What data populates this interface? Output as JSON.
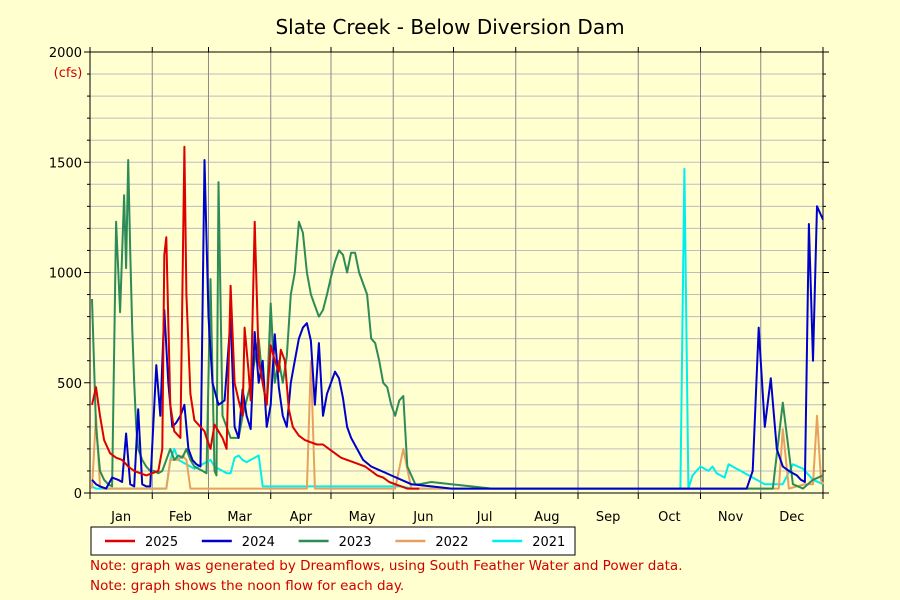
{
  "chart_data": {
    "type": "line",
    "title": "Slate Creek - Below Diversion Dam",
    "ylabel": "(cfs)",
    "xlabel": "",
    "ylim": [
      0,
      2000
    ],
    "yticks": [
      0,
      500,
      1000,
      1500,
      2000
    ],
    "x_tick_labels": [
      "Jan",
      "Feb",
      "Mar",
      "Apr",
      "May",
      "Jun",
      "Jul",
      "Aug",
      "Sep",
      "Oct",
      "Nov",
      "Dec"
    ],
    "x_unit": "day of year",
    "grid": true,
    "legend_position": "bottom",
    "series": [
      {
        "name": "2025",
        "color": "#dd0000",
        "x": [
          1,
          3,
          5,
          7,
          10,
          13,
          16,
          19,
          22,
          25,
          28,
          31,
          34,
          36,
          37,
          38,
          40,
          42,
          45,
          47,
          48,
          50,
          52,
          55,
          57,
          58,
          60,
          62,
          64,
          66,
          68,
          70,
          72,
          74,
          76,
          77,
          79,
          80,
          82,
          84,
          86,
          88,
          90,
          92,
          94,
          95,
          97,
          99,
          101,
          104,
          107,
          110,
          113,
          116,
          119,
          122,
          125,
          128,
          131,
          134,
          137,
          140,
          143,
          146,
          149,
          152,
          155,
          158,
          161,
          164
        ],
        "values": [
          400,
          480,
          350,
          240,
          180,
          160,
          150,
          120,
          100,
          90,
          80,
          90,
          100,
          200,
          1080,
          1160,
          400,
          280,
          250,
          1570,
          900,
          450,
          330,
          300,
          280,
          250,
          200,
          310,
          280,
          250,
          200,
          940,
          500,
          420,
          350,
          750,
          550,
          420,
          1230,
          600,
          500,
          400,
          670,
          600,
          550,
          650,
          600,
          380,
          300,
          260,
          240,
          230,
          220,
          220,
          200,
          180,
          160,
          150,
          140,
          130,
          120,
          100,
          80,
          70,
          50,
          40,
          30,
          20,
          20,
          20
        ]
      },
      {
        "name": "2024",
        "color": "#0000cc",
        "x": [
          1,
          3,
          5,
          8,
          11,
          14,
          16,
          18,
          20,
          22,
          24,
          26,
          28,
          30,
          33,
          35,
          37,
          39,
          41,
          43,
          45,
          47,
          49,
          51,
          53,
          55,
          57,
          59,
          61,
          64,
          67,
          70,
          72,
          74,
          76,
          78,
          80,
          82,
          84,
          86,
          88,
          90,
          92,
          94,
          96,
          98,
          100,
          102,
          104,
          106,
          108,
          110,
          112,
          114,
          116,
          118,
          120,
          122,
          124,
          126,
          128,
          130,
          133,
          136,
          140,
          145,
          150,
          155,
          160,
          170,
          180,
          200,
          230,
          260,
          290,
          300,
          306,
          310,
          312,
          316,
          320,
          324,
          327,
          330,
          333,
          336,
          339,
          342,
          345,
          348,
          350,
          352,
          354,
          356,
          358,
          360,
          362,
          365
        ],
        "values": [
          60,
          40,
          30,
          20,
          70,
          60,
          50,
          270,
          40,
          30,
          380,
          40,
          30,
          30,
          580,
          350,
          830,
          500,
          300,
          320,
          350,
          400,
          200,
          150,
          130,
          120,
          1510,
          800,
          500,
          400,
          420,
          790,
          300,
          250,
          470,
          350,
          290,
          730,
          500,
          600,
          300,
          400,
          720,
          480,
          350,
          300,
          500,
          600,
          700,
          750,
          770,
          690,
          400,
          680,
          350,
          450,
          500,
          550,
          520,
          430,
          300,
          250,
          200,
          150,
          120,
          100,
          80,
          60,
          40,
          30,
          20,
          20,
          20,
          20,
          20,
          20,
          20,
          20,
          20,
          20,
          20,
          20,
          20,
          100,
          750,
          300,
          520,
          200,
          120,
          100,
          90,
          80,
          60,
          50,
          1220,
          600,
          1300,
          1240
        ]
      },
      {
        "name": "2023",
        "color": "#2e8b57",
        "x": [
          1,
          3,
          5,
          7,
          9,
          11,
          13,
          15,
          17,
          18,
          19,
          20,
          21,
          22,
          23,
          24,
          26,
          28,
          30,
          32,
          34,
          36,
          38,
          40,
          42,
          44,
          46,
          48,
          50,
          52,
          54,
          56,
          58,
          60,
          62,
          63,
          64,
          66,
          68,
          70,
          72,
          74,
          76,
          78,
          80,
          82,
          84,
          86,
          88,
          90,
          92,
          94,
          96,
          98,
          100,
          102,
          104,
          106,
          108,
          110,
          112,
          114,
          116,
          118,
          120,
          122,
          124,
          126,
          128,
          130,
          132,
          134,
          136,
          138,
          140,
          142,
          144,
          146,
          148,
          150,
          152,
          154,
          156,
          158,
          160,
          162,
          164,
          170,
          180,
          190,
          200,
          210,
          230,
          260,
          290,
          310,
          320,
          326,
          328,
          330,
          333,
          336,
          340,
          345,
          350,
          355,
          360,
          365
        ],
        "values": [
          880,
          300,
          100,
          60,
          40,
          30,
          1230,
          820,
          1350,
          1020,
          1510,
          1100,
          750,
          500,
          300,
          200,
          150,
          120,
          100,
          100,
          90,
          100,
          150,
          200,
          150,
          170,
          160,
          200,
          150,
          120,
          110,
          100,
          90,
          970,
          100,
          80,
          1410,
          350,
          300,
          250,
          250,
          250,
          350,
          420,
          500,
          600,
          700,
          500,
          400,
          860,
          500,
          600,
          500,
          620,
          900,
          1000,
          1230,
          1180,
          1000,
          900,
          850,
          800,
          830,
          900,
          980,
          1050,
          1100,
          1080,
          1000,
          1090,
          1090,
          1000,
          950,
          900,
          700,
          680,
          600,
          500,
          480,
          400,
          350,
          420,
          440,
          120,
          80,
          40,
          40,
          50,
          40,
          30,
          20,
          20,
          20,
          20,
          20,
          20,
          20,
          20,
          20,
          20,
          20,
          20,
          20,
          410,
          40,
          20,
          60,
          80
        ]
      },
      {
        "name": "2022",
        "color": "#e8a060",
        "x": [
          1,
          3,
          5,
          7,
          10,
          14,
          18,
          22,
          26,
          30,
          34,
          38,
          40,
          42,
          44,
          46,
          48,
          50,
          52,
          56,
          60,
          64,
          68,
          72,
          76,
          80,
          84,
          88,
          92,
          96,
          100,
          104,
          108,
          110,
          112,
          114,
          116,
          118,
          120,
          124,
          128,
          132,
          136,
          140,
          144,
          148,
          152,
          156,
          160,
          170,
          180,
          200,
          230,
          260,
          290,
          320,
          330,
          335,
          340,
          343,
          345,
          348,
          352,
          356,
          360,
          362,
          364,
          365
        ],
        "values": [
          20,
          350,
          30,
          20,
          20,
          20,
          20,
          20,
          20,
          20,
          20,
          20,
          150,
          150,
          150,
          170,
          150,
          20,
          20,
          20,
          20,
          20,
          20,
          20,
          20,
          20,
          20,
          20,
          20,
          20,
          20,
          20,
          20,
          600,
          20,
          20,
          20,
          20,
          20,
          20,
          20,
          20,
          20,
          20,
          20,
          20,
          20,
          200,
          20,
          20,
          20,
          20,
          20,
          20,
          20,
          20,
          20,
          20,
          20,
          20,
          290,
          20,
          30,
          40,
          40,
          350,
          60,
          40
        ]
      },
      {
        "name": "2021",
        "color": "#00eeee",
        "x": [
          1,
          3,
          5,
          8,
          11,
          14,
          17,
          20,
          23,
          26,
          29,
          32,
          35,
          38,
          40,
          42,
          44,
          46,
          48,
          50,
          52,
          54,
          56,
          58,
          60,
          62,
          64,
          66,
          68,
          70,
          72,
          74,
          76,
          78,
          80,
          82,
          84,
          86,
          88,
          90,
          92,
          94,
          96,
          98,
          100,
          105,
          110,
          115,
          120,
          125,
          130,
          135,
          140,
          145,
          150,
          155,
          160,
          170,
          180,
          200,
          230,
          260,
          280,
          290,
          294,
          296,
          298,
          300,
          302,
          304,
          306,
          308,
          310,
          312,
          314,
          316,
          318,
          320,
          322,
          324,
          326,
          328,
          330,
          332,
          334,
          336,
          340,
          345,
          350,
          355,
          360,
          365
        ],
        "values": [
          30,
          20,
          20,
          20,
          20,
          20,
          20,
          20,
          20,
          20,
          20,
          20,
          20,
          20,
          150,
          200,
          150,
          140,
          130,
          120,
          110,
          120,
          130,
          140,
          150,
          120,
          110,
          100,
          90,
          90,
          160,
          170,
          150,
          140,
          150,
          160,
          170,
          30,
          30,
          30,
          30,
          30,
          30,
          30,
          30,
          30,
          30,
          30,
          30,
          30,
          30,
          30,
          30,
          30,
          30,
          30,
          20,
          20,
          20,
          20,
          20,
          20,
          20,
          20,
          20,
          1470,
          20,
          80,
          100,
          120,
          110,
          100,
          120,
          90,
          80,
          70,
          130,
          120,
          110,
          100,
          90,
          80,
          70,
          60,
          50,
          40,
          40,
          40,
          130,
          110,
          60,
          40
        ]
      }
    ]
  },
  "notes": [
    "Note: graph was generated by Dreamflows, using South Feather Water and Power data.",
    "Note: graph shows the noon flow for each day."
  ]
}
